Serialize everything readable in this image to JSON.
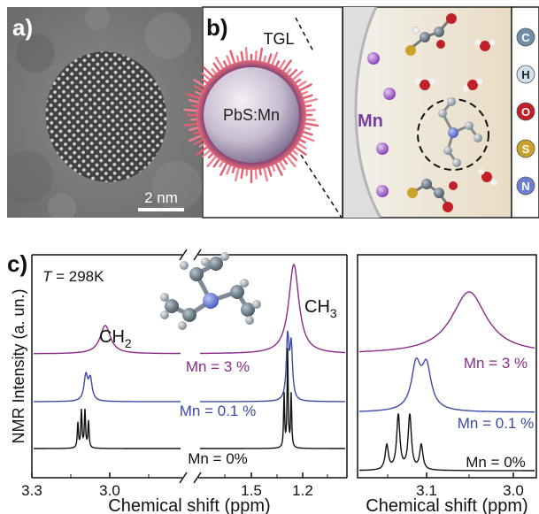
{
  "panel_a": {
    "label": "a)",
    "scale_bar": "2 nm"
  },
  "panel_b": {
    "label": "b)",
    "shell_label": "TGL",
    "core_label": "PbS:Mn",
    "ion_label": "Mn",
    "legend": [
      {
        "symbol": "C",
        "color": "#6f8fa8"
      },
      {
        "symbol": "H",
        "color": "#cfe1ea"
      },
      {
        "symbol": "O",
        "color": "#c02028"
      },
      {
        "symbol": "S",
        "color": "#c9a227"
      },
      {
        "symbol": "N",
        "color": "#6a7fd0"
      }
    ]
  },
  "panel_c": {
    "label": "c)",
    "temperature": "T = 298K",
    "ylabel": "NMR Intensity (a. un.)",
    "xlabel_left": "Chemical shift (ppm)",
    "xlabel_right": "Chemical shift (ppm)",
    "ticks_left": [
      "3.3",
      "3.0",
      "1.5",
      "1.2"
    ],
    "ticks_right": [
      "3.1",
      "3.0"
    ],
    "peak_ch2": "CH",
    "peak_ch2_sub": "2",
    "peak_ch3": "CH",
    "peak_ch3_sub": "3",
    "series_labels": [
      "Mn = 3 %",
      "Mn = 0.1 %",
      "Mn = 0%"
    ],
    "series_labels_right": [
      "Mn = 3 %",
      "Mn = 0.1 %",
      "Mn = 0%"
    ],
    "colors": {
      "mn3": "#8a2b8a",
      "mn01": "#3a4aa8",
      "mn0": "#111111"
    }
  }
}
